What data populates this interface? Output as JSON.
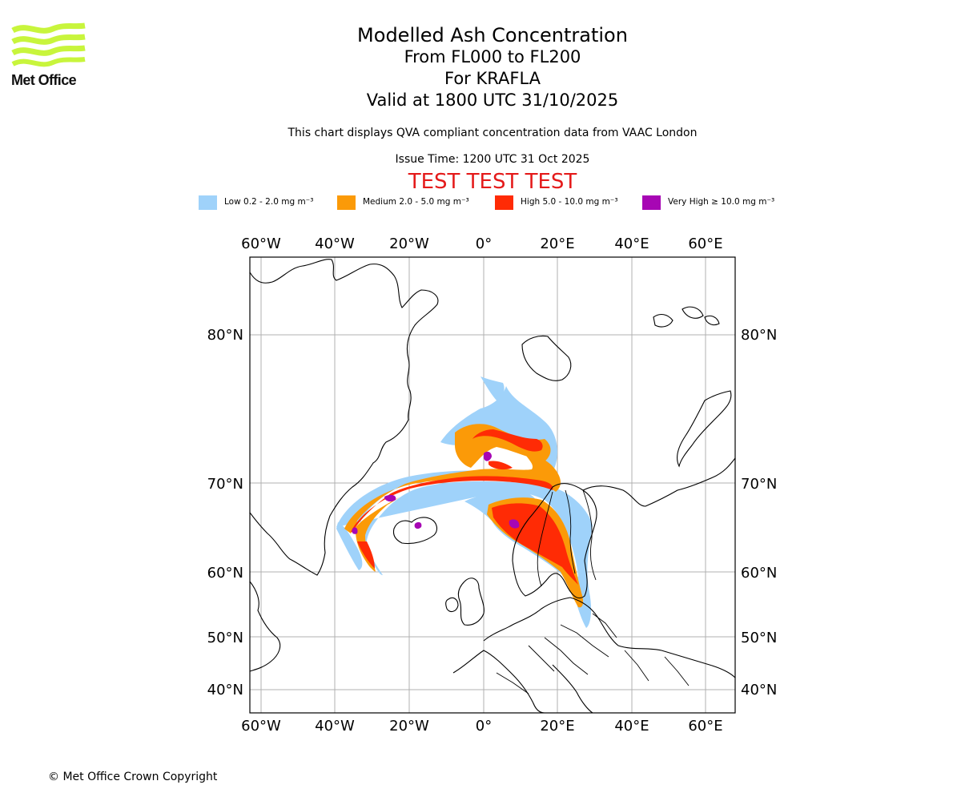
{
  "logo": {
    "text": "Met Office",
    "color": "#c8f53c"
  },
  "title": {
    "line1": "Modelled Ash Concentration",
    "line2": "From FL000 to FL200",
    "line3": "For KRAFLA",
    "line4": "Valid at 1800 UTC 31/10/2025"
  },
  "description": "This chart displays QVA compliant concentration data from VAAC London",
  "issue_time": "Issue Time: 1200 UTC 31 Oct 2025",
  "test_banner": "TEST TEST TEST",
  "legend": [
    {
      "label": "Low 0.2 - 2.0 mg m⁻³",
      "color": "#9fd2fa"
    },
    {
      "label": "Medium 2.0 - 5.0 mg m⁻³",
      "color": "#fb9a08"
    },
    {
      "label": "High 5.0 - 10.0 mg m⁻³",
      "color": "#ff2b05"
    },
    {
      "label": "Very High ≥ 10.0 mg m⁻³",
      "color": "#a706b4"
    }
  ],
  "map": {
    "lon_ticks": [
      "60°W",
      "40°W",
      "20°W",
      "0°",
      "20°E",
      "40°E",
      "60°E"
    ],
    "lat_ticks": [
      "80°N",
      "70°N",
      "60°N",
      "50°N",
      "40°N"
    ]
  },
  "copyright": "© Met Office Crown Copyright"
}
